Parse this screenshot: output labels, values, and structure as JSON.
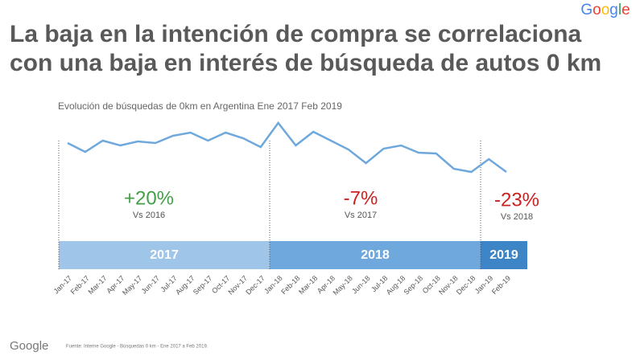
{
  "logo": "Google",
  "title_lines": [
    "La baja en la intención de compra se correlaciona",
    "con una baja en interés de búsqueda de autos 0 km"
  ],
  "chart_data": {
    "type": "line",
    "title": "Evolución de búsquedas de 0km en Argentina Ene 2017 Feb 2019",
    "categories": [
      "Jan-17",
      "Feb-17",
      "Mar-17",
      "Apr-17",
      "May-17",
      "Jun-17",
      "Jul-17",
      "Aug-17",
      "Sep-17",
      "Oct-17",
      "Nov-17",
      "Dec-17",
      "Jan-18",
      "Feb-18",
      "Mar-18",
      "Apr-18",
      "May-18",
      "Jun-18",
      "Jul-18",
      "Aug-18",
      "Sep-18",
      "Oct-18",
      "Nov-18",
      "Dec-18",
      "Jan-19",
      "Feb-19"
    ],
    "series": [
      {
        "color": "#6fa8dc",
        "values": [
          52,
          41,
          55,
          49,
          54,
          52,
          61,
          65,
          55,
          65,
          58,
          47,
          77,
          49,
          66,
          55,
          44,
          27,
          45,
          49,
          40,
          39,
          20,
          16,
          32,
          16
        ]
      }
    ],
    "ylim": [
      0,
      90
    ],
    "periods": [
      {
        "label": "2017",
        "change": "+20%",
        "vs": "Vs 2016",
        "change_color": "#43a047",
        "band_color": "#9fc5e8"
      },
      {
        "label": "2018",
        "change": "-7%",
        "vs": "Vs 2017",
        "change_color": "#cc2222",
        "band_color": "#6fa8dc"
      },
      {
        "label": "2019",
        "change": "-23%",
        "vs": "Vs 2018",
        "change_color": "#cc2222",
        "band_color": "#3d85c6"
      }
    ]
  },
  "footer": {
    "logo": "Google",
    "source": "Fuente: Interne Google - Búsquedas 0 km - Ene 2017 a Feb 2019."
  }
}
